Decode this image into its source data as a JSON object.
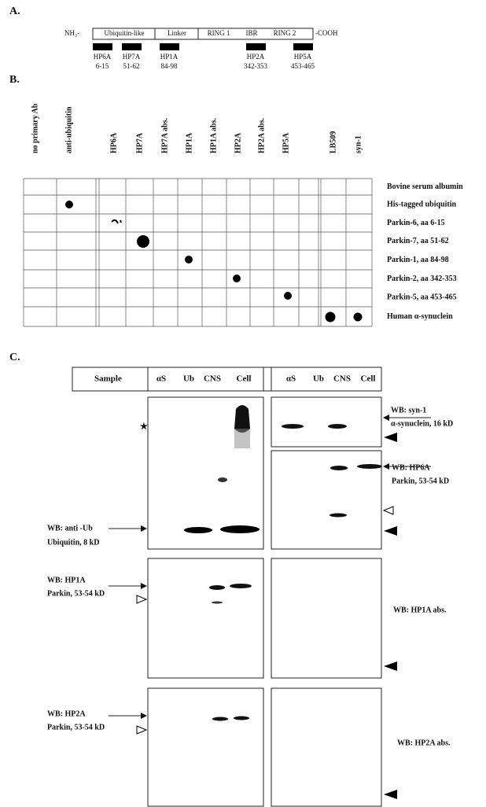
{
  "panel_a": {
    "label": "A.",
    "n_terminus": "NH₂-",
    "c_terminus": "-COOH",
    "domains": [
      "Ubiquitin-like",
      "Linker",
      "RING 1",
      "IBR",
      "RING 2"
    ],
    "peptides": [
      {
        "name": "HP6A",
        "range": "6-15"
      },
      {
        "name": "HP7A",
        "range": "51-62"
      },
      {
        "name": "HP1A",
        "range": "84-98"
      },
      {
        "name": "HP2A",
        "range": "342-353"
      },
      {
        "name": "HP5A",
        "range": "453-465"
      }
    ]
  },
  "panel_b": {
    "label": "B.",
    "columns": [
      "no primary Ab",
      "anti-ubiquitin",
      "HP6A",
      "HP7A",
      "HP7A abs.",
      "HP1A",
      "HP1A abs.",
      "HP2A",
      "HP2A abs.",
      "HP5A",
      "LB509",
      "syn-1"
    ],
    "rows": [
      "Bovine serum albumin",
      "His-tagged ubiquitin",
      "Parkin-6,  aa 6-15",
      "Parkin-7, aa 51-62",
      "Parkin-1, aa 84-98",
      "Parkin-2, aa 342-353",
      "Parkin-5, aa 453-465",
      "Human α-synuclein"
    ]
  },
  "panel_c": {
    "label": "C.",
    "sample_header": "Sample",
    "lanes": [
      "αS",
      "Ub",
      "CNS",
      "Cell"
    ],
    "star": "★",
    "blots": {
      "anti_ub": {
        "wb": "WB: anti -Ub",
        "band": "Ubiquitin, 8 kD"
      },
      "syn1": {
        "wb": "WB: syn-1",
        "band": "α-synuclein, 16 kD"
      },
      "hp6a": {
        "wb": "WB:  HP6A",
        "band": "Parkin, 53-54 kD"
      },
      "hp1a": {
        "wb": "WB: HP1A",
        "band": "Parkin, 53-54 kD"
      },
      "hp1a_abs": {
        "wb": "WB: HP1A abs."
      },
      "hp2a": {
        "wb": "WB: HP2A",
        "band": "Parkin, 53-54 kD"
      },
      "hp2a_abs": {
        "wb": "WB: HP2A abs."
      }
    }
  }
}
